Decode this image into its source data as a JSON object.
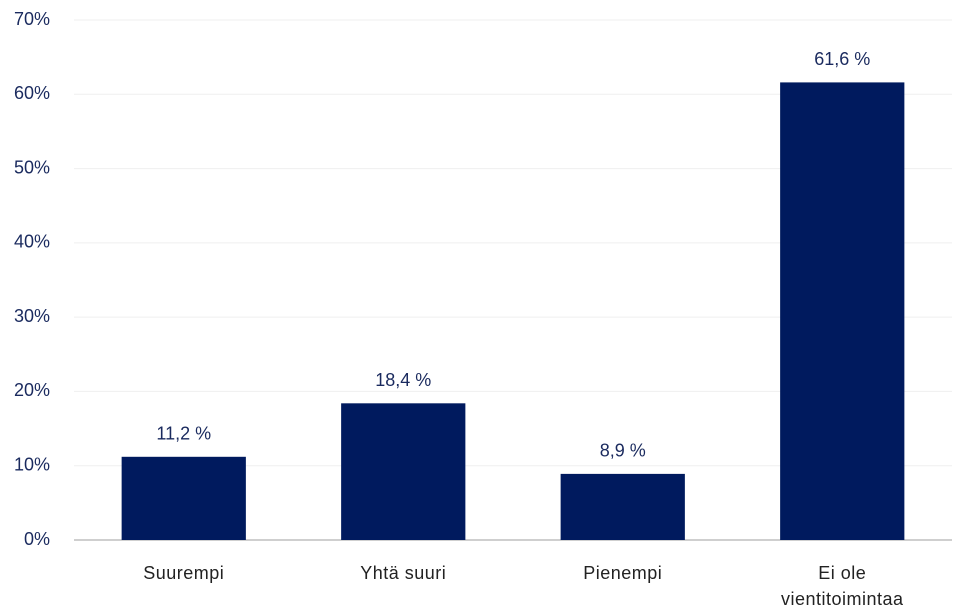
{
  "chart_data": {
    "type": "bar",
    "categories": [
      "Suurempi",
      "Yhtä suuri",
      "Pienempi",
      "Ei ole vientitoimintaa"
    ],
    "values": [
      11.2,
      18.4,
      8.9,
      61.6
    ],
    "value_labels": [
      "11,2 %",
      "18,4 %",
      "8,9 %",
      "61,6 %"
    ],
    "color": "#001a5e",
    "ylim": [
      0,
      70
    ],
    "yticks": [
      {
        "value": 0,
        "label": "0%"
      },
      {
        "value": 10,
        "label": "10%"
      },
      {
        "value": 20,
        "label": "20%"
      },
      {
        "value": 30,
        "label": "30%"
      },
      {
        "value": 40,
        "label": "40%"
      },
      {
        "value": 50,
        "label": "50%"
      },
      {
        "value": 60,
        "label": "60%"
      },
      {
        "value": 70,
        "label": "70%"
      }
    ],
    "grid": true
  }
}
